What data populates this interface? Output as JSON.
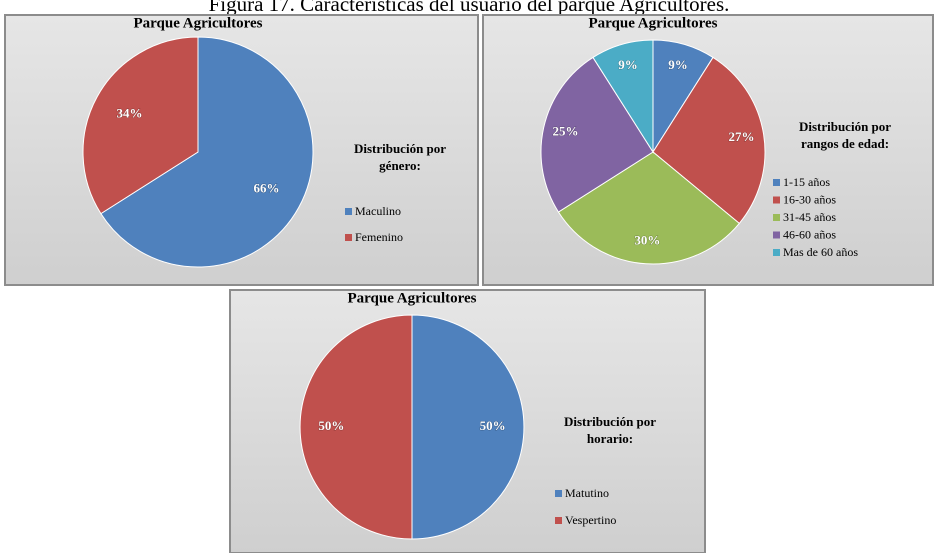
{
  "caption": "Figura 17. Características del usuario del parque Agricultores.",
  "chart_data": [
    {
      "type": "pie",
      "title": "Parque Agricultores",
      "legend_title": [
        "Distribución por",
        "género:"
      ],
      "categories": [
        "Maculino",
        "Femenino"
      ],
      "values": [
        66,
        34
      ],
      "value_labels": [
        "66%",
        "34%"
      ],
      "colors": [
        "#4f81bd",
        "#c0504d"
      ]
    },
    {
      "type": "pie",
      "title": "Parque Agricultores",
      "legend_title": [
        "Distribución por",
        "rangos de edad:"
      ],
      "categories": [
        "1-15 años",
        "16-30 años",
        "31-45 años",
        "46-60 años",
        "Mas de 60 años"
      ],
      "values": [
        9,
        27,
        30,
        25,
        9
      ],
      "value_labels": [
        "9%",
        "27%",
        "30%",
        "25%",
        "9%"
      ],
      "colors": [
        "#4f81bd",
        "#c0504d",
        "#9bbb59",
        "#8064a2",
        "#4bacc6"
      ]
    },
    {
      "type": "pie",
      "title": "Parque Agricultores",
      "legend_title": [
        "Distribución por",
        "horario:"
      ],
      "categories": [
        "Matutino",
        "Vespertino"
      ],
      "values": [
        50,
        50
      ],
      "value_labels": [
        "50%",
        "50%"
      ],
      "colors": [
        "#4f81bd",
        "#c0504d"
      ]
    }
  ]
}
